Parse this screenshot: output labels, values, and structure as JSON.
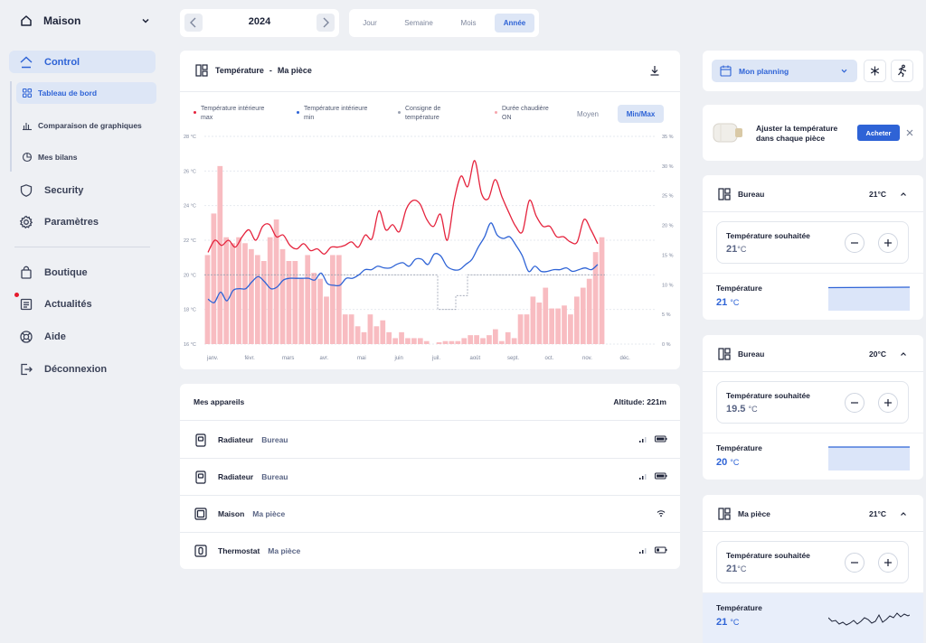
{
  "sidebar": {
    "home": "Maison",
    "items": [
      {
        "label": "Control",
        "icon": "home-outline-icon"
      },
      {
        "label": "Security",
        "icon": "shield-icon"
      },
      {
        "label": "Paramètres",
        "icon": "gear-icon"
      },
      {
        "label": "Boutique",
        "icon": "shopping-bag-icon"
      },
      {
        "label": "Actualités",
        "icon": "news-icon"
      },
      {
        "label": "Aide",
        "icon": "lifebuoy-icon"
      },
      {
        "label": "Déconnexion",
        "icon": "logout-icon"
      }
    ],
    "subitems": [
      {
        "label": "Tableau de bord",
        "icon": "dashboard-grid-icon"
      },
      {
        "label": "Comparaison de graphiques",
        "icon": "bar-chart-icon"
      },
      {
        "label": "Mes bilans",
        "icon": "pie-chart-icon"
      }
    ]
  },
  "year": "2024",
  "periods": [
    "Jour",
    "Semaine",
    "Mois",
    "Année"
  ],
  "active_period": "Année",
  "chart_card": {
    "title": "Température",
    "sep": "-",
    "room": "Ma pièce",
    "legend": [
      {
        "l1": "Température intérieure",
        "l2": "max",
        "color": "#e5233d"
      },
      {
        "l1": "Température intérieure",
        "l2": "min",
        "color": "#2e63d6"
      },
      {
        "l1": "Consigne de",
        "l2": "température",
        "color": "#9aa1b1"
      },
      {
        "l1": "Durée chaudière",
        "l2": "ON",
        "color": "#f6a5ad"
      }
    ],
    "btn_avg": "Moyen",
    "btn_minmax": "Min/Max"
  },
  "chart_data": {
    "type": "bar+line",
    "x_labels": [
      "janv.",
      "févr.",
      "mars",
      "avr.",
      "mai",
      "juin",
      "juil.",
      "août",
      "sept.",
      "oct.",
      "nov.",
      "déc."
    ],
    "y_left": {
      "ticks": [
        "28 °C",
        "26 °C",
        "24 °C",
        "22 °C",
        "20 °C",
        "18 °C",
        "16 °C"
      ],
      "range": [
        16,
        28
      ]
    },
    "y_right": {
      "ticks": [
        "35 %",
        "30 %",
        "25 %",
        "20 %",
        "15 %",
        "10 %",
        "5 %",
        "0 %"
      ],
      "range": [
        0,
        35
      ]
    },
    "boiler_on_pct": [
      15,
      22,
      30,
      18,
      17,
      18,
      17,
      16,
      15,
      14,
      18,
      21,
      16,
      14,
      14,
      11,
      15,
      12,
      11,
      8,
      15,
      15,
      5,
      5,
      3,
      2,
      5,
      3,
      4,
      2,
      1,
      2,
      1,
      1,
      1,
      0.5,
      0,
      0.3,
      0.5,
      0.5,
      0.5,
      1,
      1.5,
      1.5,
      1,
      1.5,
      2.5,
      0.5,
      2,
      1,
      5,
      5,
      8,
      7,
      9.5,
      6,
      6,
      6.5,
      5,
      8,
      9.5,
      11,
      15.5,
      18
    ],
    "temp_max": [
      21.3,
      22,
      21.7,
      22,
      21.6,
      22.2,
      22.6,
      22,
      22.8,
      22.9,
      22.2,
      22.3,
      21.7,
      21.5,
      21.8,
      21.4,
      21.5,
      21.2,
      21.6,
      21.6,
      21.7,
      21.9,
      21.6,
      22.3,
      22.1,
      23.7,
      22.6,
      22.9,
      22.5,
      23.8,
      24.3,
      24.1,
      23.2,
      22.8,
      23.5,
      22,
      24.3,
      25.7,
      25.1,
      26.6,
      24.7,
      24.4,
      25.5,
      24.5,
      23.6,
      22.8,
      22.5,
      24.3,
      23.4,
      22.8,
      22.8,
      22.2,
      22.2,
      21.9,
      21.9,
      23.2,
      22.6,
      21.8
    ],
    "temp_min": [
      18.6,
      18.4,
      19,
      18.5,
      19.1,
      19.2,
      19.2,
      19.6,
      19.9,
      19.6,
      19.2,
      19.3,
      19.7,
      19.8,
      19.8,
      19.8,
      19.8,
      19.7,
      20.1,
      19.5,
      19.4,
      19.4,
      19.8,
      19.8,
      20,
      20.3,
      20.3,
      20.5,
      20.4,
      20.4,
      20.6,
      20.7,
      20.5,
      20.9,
      20.9,
      20.6,
      21.2,
      21.1,
      20.5,
      20.3,
      20.3,
      20.6,
      20.9,
      21.6,
      22.2,
      23,
      22.3,
      22.1,
      22.2,
      21.7,
      21.1,
      20.2,
      20.5,
      20.2,
      20.2,
      20.3,
      20.3,
      20.4,
      20.2,
      20.3,
      20.4,
      20.3,
      20.6
    ]
  },
  "devices": {
    "title": "Mes appareils",
    "alt_label": "Altitude:",
    "alt_value": "221m",
    "list": [
      {
        "type": "Radiateur",
        "room": "Bureau",
        "icon": "radiator-icon"
      },
      {
        "type": "Radiateur",
        "room": "Bureau",
        "icon": "radiator-icon"
      },
      {
        "type": "Maison",
        "room": "Ma pièce",
        "icon": "gateway-icon"
      },
      {
        "type": "Thermostat",
        "room": "Ma pièce",
        "icon": "thermostat-icon"
      }
    ]
  },
  "planning": {
    "label": "Mon planning"
  },
  "promo": {
    "text1": "Ajuster la température",
    "text2": "dans chaque pièce",
    "buy": "Acheter"
  },
  "rooms": [
    {
      "name": "Bureau",
      "temp": "21°C",
      "desired_label": "Température souhaitée",
      "desired": "21",
      "current_label": "Température",
      "current": "21",
      "unit": "°C"
    },
    {
      "name": "Bureau",
      "temp": "20°C",
      "desired_label": "Température souhaitée",
      "desired": "19.5",
      "current_label": "Température",
      "current": "20",
      "unit": "°C"
    },
    {
      "name": "Ma pièce",
      "temp": "21°C",
      "desired_label": "Température souhaitée",
      "desired": "21",
      "current_label": "Température",
      "current": "21",
      "unit": "°C"
    }
  ]
}
